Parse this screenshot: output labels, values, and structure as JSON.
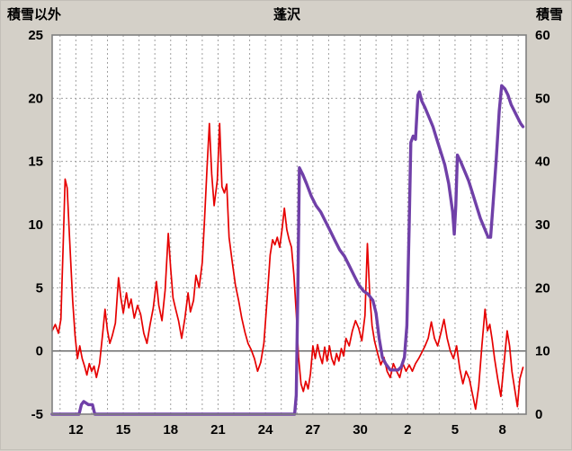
{
  "header": {
    "left_axis_title": "積雪以外",
    "title": "蓬沢",
    "right_axis_title": "積雪"
  },
  "chart_data": {
    "type": "line",
    "title": "蓬沢",
    "left_axis": {
      "label": "積雪以外",
      "min": -5,
      "max": 25,
      "tick_step": 5,
      "ticks": [
        25,
        20,
        15,
        10,
        5,
        0,
        -5
      ]
    },
    "right_axis": {
      "label": "積雪",
      "min": 0,
      "max": 60,
      "tick_step": 10,
      "ticks": [
        60,
        50,
        40,
        30,
        20,
        10,
        0
      ]
    },
    "x_axis": {
      "min": 10.5,
      "max": 40.5,
      "day_grid_step": 1,
      "tick_positions": [
        12,
        15,
        18,
        21,
        24,
        27,
        30,
        33,
        36,
        39
      ],
      "tick_labels": [
        "12",
        "15",
        "18",
        "21",
        "24",
        "27",
        "30",
        "2",
        "5",
        "8"
      ]
    },
    "grid": true,
    "legend": "none",
    "colors": {
      "plot_bg": "#ffffff",
      "page_bg": "#d4d0c8",
      "grid": "#a0a0a0",
      "zero_line": "#606060",
      "frame": "#808080",
      "red_series": "#e60000",
      "snow_series": "#7040a8"
    },
    "series": [
      {
        "id": "non-snow-red",
        "axis": "left",
        "color": "#e60000",
        "width": 1.7,
        "points": [
          [
            10.5,
            1.6
          ],
          [
            10.7,
            2.1
          ],
          [
            10.9,
            1.4
          ],
          [
            11.05,
            2.5
          ],
          [
            11.2,
            8.5
          ],
          [
            11.32,
            13.6
          ],
          [
            11.45,
            12.9
          ],
          [
            11.6,
            9.0
          ],
          [
            11.8,
            4.0
          ],
          [
            11.95,
            1.2
          ],
          [
            12.1,
            -0.6
          ],
          [
            12.25,
            0.4
          ],
          [
            12.4,
            -0.6
          ],
          [
            12.55,
            -1.2
          ],
          [
            12.7,
            -1.9
          ],
          [
            12.85,
            -1.0
          ],
          [
            13.0,
            -1.6
          ],
          [
            13.15,
            -1.2
          ],
          [
            13.3,
            -2.1
          ],
          [
            13.5,
            -1.0
          ],
          [
            13.7,
            1.4
          ],
          [
            13.85,
            3.3
          ],
          [
            14.0,
            1.6
          ],
          [
            14.15,
            0.6
          ],
          [
            14.3,
            1.2
          ],
          [
            14.5,
            2.2
          ],
          [
            14.7,
            5.8
          ],
          [
            14.85,
            4.2
          ],
          [
            15.0,
            3.0
          ],
          [
            15.2,
            4.6
          ],
          [
            15.35,
            3.4
          ],
          [
            15.5,
            4.1
          ],
          [
            15.7,
            2.6
          ],
          [
            15.9,
            3.6
          ],
          [
            16.1,
            2.9
          ],
          [
            16.3,
            1.4
          ],
          [
            16.5,
            0.6
          ],
          [
            16.7,
            2.1
          ],
          [
            16.9,
            3.4
          ],
          [
            17.1,
            5.5
          ],
          [
            17.25,
            3.6
          ],
          [
            17.45,
            2.4
          ],
          [
            17.65,
            4.8
          ],
          [
            17.85,
            9.3
          ],
          [
            18.0,
            6.5
          ],
          [
            18.15,
            4.2
          ],
          [
            18.3,
            3.4
          ],
          [
            18.5,
            2.4
          ],
          [
            18.7,
            1.0
          ],
          [
            18.9,
            2.6
          ],
          [
            19.1,
            4.6
          ],
          [
            19.25,
            3.1
          ],
          [
            19.45,
            4.0
          ],
          [
            19.6,
            6.0
          ],
          [
            19.8,
            5.0
          ],
          [
            20.0,
            7.0
          ],
          [
            20.15,
            10.5
          ],
          [
            20.3,
            14.5
          ],
          [
            20.45,
            18.0
          ],
          [
            20.6,
            14.0
          ],
          [
            20.75,
            11.5
          ],
          [
            20.95,
            13.5
          ],
          [
            21.1,
            18.0
          ],
          [
            21.25,
            13.0
          ],
          [
            21.4,
            12.5
          ],
          [
            21.55,
            13.2
          ],
          [
            21.7,
            9.0
          ],
          [
            21.9,
            7.0
          ],
          [
            22.1,
            5.2
          ],
          [
            22.3,
            4.0
          ],
          [
            22.5,
            2.6
          ],
          [
            22.7,
            1.5
          ],
          [
            22.9,
            0.6
          ],
          [
            23.1,
            0.1
          ],
          [
            23.3,
            -0.6
          ],
          [
            23.5,
            -1.6
          ],
          [
            23.7,
            -0.9
          ],
          [
            23.9,
            0.6
          ],
          [
            24.1,
            4.0
          ],
          [
            24.3,
            7.6
          ],
          [
            24.45,
            8.8
          ],
          [
            24.6,
            8.4
          ],
          [
            24.75,
            9.0
          ],
          [
            24.9,
            8.2
          ],
          [
            25.05,
            9.6
          ],
          [
            25.2,
            11.3
          ],
          [
            25.35,
            9.6
          ],
          [
            25.5,
            8.8
          ],
          [
            25.65,
            8.2
          ],
          [
            25.8,
            6.0
          ],
          [
            25.95,
            3.0
          ],
          [
            26.1,
            -0.5
          ],
          [
            26.25,
            -2.6
          ],
          [
            26.4,
            -3.2
          ],
          [
            26.55,
            -2.4
          ],
          [
            26.7,
            -3.0
          ],
          [
            26.85,
            -1.8
          ],
          [
            27.0,
            0.4
          ],
          [
            27.15,
            -0.6
          ],
          [
            27.3,
            0.5
          ],
          [
            27.45,
            -0.4
          ],
          [
            27.6,
            -1.0
          ],
          [
            27.75,
            0.3
          ],
          [
            27.9,
            -0.8
          ],
          [
            28.05,
            0.4
          ],
          [
            28.2,
            -0.6
          ],
          [
            28.35,
            -1.1
          ],
          [
            28.5,
            -0.2
          ],
          [
            28.65,
            -0.8
          ],
          [
            28.8,
            0.2
          ],
          [
            28.95,
            -0.4
          ],
          [
            29.1,
            1.0
          ],
          [
            29.3,
            0.4
          ],
          [
            29.5,
            1.6
          ],
          [
            29.7,
            2.4
          ],
          [
            29.9,
            1.8
          ],
          [
            30.1,
            0.8
          ],
          [
            30.3,
            2.8
          ],
          [
            30.45,
            8.5
          ],
          [
            30.6,
            4.5
          ],
          [
            30.75,
            2.0
          ],
          [
            30.9,
            0.8
          ],
          [
            31.1,
            -0.2
          ],
          [
            31.3,
            -1.1
          ],
          [
            31.5,
            -0.5
          ],
          [
            31.7,
            -1.6
          ],
          [
            31.9,
            -2.1
          ],
          [
            32.1,
            -1.0
          ],
          [
            32.3,
            -1.6
          ],
          [
            32.5,
            -2.1
          ],
          [
            32.7,
            -1.0
          ],
          [
            32.9,
            -1.6
          ],
          [
            33.1,
            -1.1
          ],
          [
            33.3,
            -1.6
          ],
          [
            33.5,
            -1.0
          ],
          [
            33.7,
            -0.6
          ],
          [
            33.9,
            -0.1
          ],
          [
            34.1,
            0.4
          ],
          [
            34.3,
            1.0
          ],
          [
            34.5,
            2.3
          ],
          [
            34.7,
            1.0
          ],
          [
            34.9,
            0.4
          ],
          [
            35.1,
            1.4
          ],
          [
            35.3,
            2.5
          ],
          [
            35.5,
            1.0
          ],
          [
            35.7,
            0.0
          ],
          [
            35.9,
            -0.6
          ],
          [
            36.1,
            0.4
          ],
          [
            36.3,
            -1.4
          ],
          [
            36.5,
            -2.6
          ],
          [
            36.7,
            -1.6
          ],
          [
            36.9,
            -2.2
          ],
          [
            37.1,
            -3.4
          ],
          [
            37.3,
            -4.6
          ],
          [
            37.5,
            -2.8
          ],
          [
            37.7,
            0.4
          ],
          [
            37.9,
            3.3
          ],
          [
            38.05,
            1.6
          ],
          [
            38.2,
            2.1
          ],
          [
            38.35,
            0.9
          ],
          [
            38.5,
            -0.6
          ],
          [
            38.7,
            -2.2
          ],
          [
            38.9,
            -3.6
          ],
          [
            39.1,
            -1.0
          ],
          [
            39.3,
            1.6
          ],
          [
            39.45,
            0.4
          ],
          [
            39.6,
            -1.6
          ],
          [
            39.8,
            -3.2
          ],
          [
            39.95,
            -4.4
          ],
          [
            40.1,
            -2.2
          ],
          [
            40.3,
            -1.3
          ]
        ]
      },
      {
        "id": "snow-depth-purple",
        "axis": "right",
        "color": "#7040a8",
        "width": 3.4,
        "points": [
          [
            10.5,
            0
          ],
          [
            12.2,
            0
          ],
          [
            12.35,
            1.5
          ],
          [
            12.5,
            2
          ],
          [
            12.8,
            1.5
          ],
          [
            13.05,
            1.5
          ],
          [
            13.2,
            0
          ],
          [
            25.85,
            0
          ],
          [
            25.95,
            3
          ],
          [
            26.05,
            20
          ],
          [
            26.15,
            39
          ],
          [
            26.35,
            38
          ],
          [
            26.6,
            36.5
          ],
          [
            26.9,
            34.5
          ],
          [
            27.2,
            33
          ],
          [
            27.5,
            32
          ],
          [
            27.8,
            30.5
          ],
          [
            28.1,
            29
          ],
          [
            28.4,
            27.5
          ],
          [
            28.7,
            26
          ],
          [
            29.0,
            25
          ],
          [
            29.3,
            23.5
          ],
          [
            29.6,
            22
          ],
          [
            29.9,
            20.5
          ],
          [
            30.2,
            19.5
          ],
          [
            30.5,
            19
          ],
          [
            30.8,
            18
          ],
          [
            31.0,
            16
          ],
          [
            31.2,
            12
          ],
          [
            31.4,
            9
          ],
          [
            31.6,
            8
          ],
          [
            31.9,
            7
          ],
          [
            32.4,
            7
          ],
          [
            32.6,
            7.5
          ],
          [
            32.8,
            9
          ],
          [
            32.95,
            14
          ],
          [
            33.1,
            30
          ],
          [
            33.2,
            43
          ],
          [
            33.35,
            44
          ],
          [
            33.5,
            43.5
          ],
          [
            33.65,
            50.5
          ],
          [
            33.75,
            51
          ],
          [
            33.9,
            49.5
          ],
          [
            34.1,
            48.5
          ],
          [
            34.35,
            47
          ],
          [
            34.6,
            45.5
          ],
          [
            34.85,
            43.5
          ],
          [
            35.1,
            41.5
          ],
          [
            35.35,
            39.5
          ],
          [
            35.6,
            36.5
          ],
          [
            35.85,
            32
          ],
          [
            35.95,
            28.5
          ],
          [
            36.05,
            33
          ],
          [
            36.15,
            41
          ],
          [
            36.35,
            40
          ],
          [
            36.6,
            38.5
          ],
          [
            36.85,
            37
          ],
          [
            37.1,
            35
          ],
          [
            37.35,
            33
          ],
          [
            37.6,
            31
          ],
          [
            37.85,
            29.5
          ],
          [
            38.1,
            28
          ],
          [
            38.25,
            28
          ],
          [
            38.4,
            33
          ],
          [
            38.6,
            40
          ],
          [
            38.8,
            48
          ],
          [
            38.95,
            52
          ],
          [
            39.15,
            51.5
          ],
          [
            39.35,
            50.5
          ],
          [
            39.55,
            49
          ],
          [
            39.75,
            48
          ],
          [
            39.95,
            47
          ],
          [
            40.15,
            46
          ],
          [
            40.3,
            45.5
          ]
        ]
      }
    ]
  }
}
